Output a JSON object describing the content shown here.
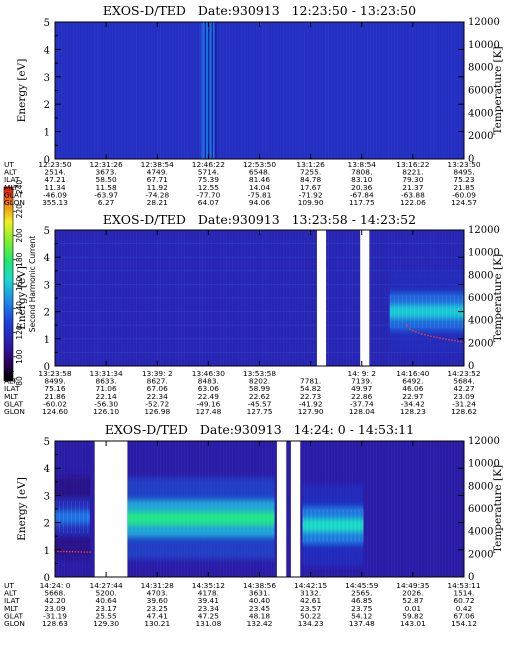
{
  "panels": [
    {
      "title": "EXOS-D/TED   Date:930913   12:23:50 - 13:23:50",
      "row_labels": [
        "UT",
        "ALT",
        "ILAT",
        "MLT",
        "GLAT",
        "GLON"
      ],
      "columns": [
        [
          "12:23:50",
          "2514.",
          "47.21",
          "11.34",
          "-46.09",
          "355.13"
        ],
        [
          "12:31:26",
          "3673.",
          "58.50",
          "11.58",
          "-63.97",
          "6.27"
        ],
        [
          "12:38:54",
          "4749.",
          "67.71",
          "11.92",
          "-74.28",
          "28.21"
        ],
        [
          "12:46:22",
          "5714.",
          "75.39",
          "12.55",
          "-77.70",
          "64.07"
        ],
        [
          "12:53:50",
          "6548.",
          "81.46",
          "14.04",
          "-75.81",
          "94.06"
        ],
        [
          "13:1:26",
          "7255.",
          "84.78",
          "17.67",
          "-71.92",
          "109.90"
        ],
        [
          "13:8:54",
          "7808.",
          "83.10",
          "20.36",
          "-67.84",
          "117.75"
        ],
        [
          "13:16:22",
          "8221.",
          "79.30",
          "21.37",
          "-63.88",
          "122.06"
        ],
        [
          "13:23:50",
          "8495.",
          "75.23",
          "21.85",
          "-60.09",
          "124.57"
        ]
      ]
    },
    {
      "title": "EXOS-D/TED   Date:930913   13:23:58 - 14:23:52",
      "row_labels": [
        "UT",
        "ALT",
        "ILAT",
        "MLT",
        "GLAT",
        "GLON"
      ],
      "columns": [
        [
          "13:23:58",
          "8499.",
          "75.16",
          "21.86",
          "-60.02",
          "124.60"
        ],
        [
          "13:31:34",
          "8633.",
          "71.06",
          "22.14",
          "-56.30",
          "126.10"
        ],
        [
          "13:39: 2",
          "8627.",
          "67.06",
          "22.34",
          "-52.72",
          "126.98"
        ],
        [
          "13:46:30",
          "8483.",
          "63.06",
          "22.49",
          "-49.16",
          "127.48"
        ],
        [
          "13:53:58",
          "8202.",
          "58.99",
          "22.62",
          "-45.57",
          "127.75"
        ],
        [
          "",
          "7781.",
          "54.82",
          "22.73",
          "-41.92",
          "127.90"
        ],
        [
          "14: 9: 2",
          "7139.",
          "49.97",
          "22.86",
          "-37.74",
          "128.04"
        ],
        [
          "14:16:40",
          "6492.",
          "46.06",
          "22.97",
          "-34.42",
          "128.23"
        ],
        [
          "14:23:52",
          "5684.",
          "42.27",
          "23.09",
          "-31.24",
          "128.62"
        ]
      ]
    },
    {
      "title": "EXOS-D/TED   Date:930913   14:24: 0 - 14:53:11",
      "row_labels": [
        "UT",
        "ALT",
        "ILAT",
        "MLT",
        "GLAT",
        "GLON"
      ],
      "columns": [
        [
          "14:24: 0",
          "5668.",
          "42.20",
          "23.09",
          "-31.19",
          "128.63"
        ],
        [
          "14:27:44",
          "5200.",
          "40.64",
          "23.17",
          "25.55",
          "129.30"
        ],
        [
          "14:31:28",
          "4703.",
          "39.60",
          "23.25",
          "47.41",
          "130.21"
        ],
        [
          "14:35:12",
          "4178.",
          "39.41",
          "23.34",
          "47.25",
          "131.08"
        ],
        [
          "14:38:56",
          "3631.",
          "40.40",
          "23.45",
          "48.18",
          "132.42"
        ],
        [
          "14:42:15",
          "3132.",
          "42.61",
          "23.57",
          "50.22",
          "134.23"
        ],
        [
          "14:45:59",
          "2565.",
          "46.85",
          "23.75",
          "54.12",
          "137.48"
        ],
        [
          "14:49:35",
          "2026.",
          "52.87",
          "0.01",
          "59.82",
          "143.01"
        ],
        [
          "14:53:11",
          "1514.",
          "60.72",
          "0.42",
          "67.06",
          "154.12"
        ]
      ]
    }
  ],
  "axes": {
    "energy_label": "Energy [eV]",
    "temperature_label": "Temperature [K]",
    "energy_ticks": [
      "0",
      "1",
      "2",
      "3",
      "4",
      "5"
    ],
    "temperature_ticks": [
      "0",
      "2000",
      "4000",
      "6000",
      "8000",
      "10000",
      "12000"
    ]
  },
  "colorbar": {
    "label": "Second Harmonic Current",
    "ticks": [
      "80",
      "100",
      "120",
      "140",
      "160",
      "180",
      "200",
      "220",
      "240"
    ]
  },
  "chart_data": [
    {
      "type": "heatmap",
      "title": "EXOS-D/TED   Date:930913   12:23:50 - 13:23:50",
      "ylabel": "Energy [eV]",
      "y2label": "Temperature [K]",
      "ylim": [
        0,
        5
      ],
      "y2lim": [
        0,
        12000
      ],
      "x": [
        "12:23:50",
        "12:31:26",
        "12:38:54",
        "12:46:22",
        "12:53:50",
        "13:1:26",
        "13:8:54",
        "13:16:22",
        "13:23:50"
      ],
      "features": [
        {
          "type": "background",
          "level": 120
        },
        {
          "type": "vertical_band",
          "from": "12:45:30",
          "to": "12:47:10",
          "level": 140
        }
      ]
    },
    {
      "type": "heatmap",
      "title": "EXOS-D/TED   Date:930913   13:23:58 - 14:23:52",
      "ylabel": "Energy [eV]",
      "y2label": "Temperature [K]",
      "ylim": [
        0,
        5
      ],
      "y2lim": [
        0,
        12000
      ],
      "x": [
        "13:23:58",
        "13:31:34",
        "13:39: 2",
        "13:46:30",
        "13:53:58",
        "",
        "14: 9: 2",
        "14:16:40",
        "14:23:52"
      ],
      "features": [
        {
          "type": "background",
          "level": 115
        },
        {
          "type": "data_gap",
          "from": "14:02:20",
          "to": "14:03:40"
        },
        {
          "type": "data_gap",
          "from": "14:08:40",
          "to": "14:10:00"
        },
        {
          "type": "band",
          "from": "14:13:00",
          "to": "14:23:52",
          "energy": 2.0,
          "level": 160
        },
        {
          "type": "temperature_trace",
          "from": "14:15:30",
          "to": "14:23:52",
          "temperature_start": 3600,
          "temperature_end": 2100
        }
      ]
    },
    {
      "type": "heatmap",
      "title": "EXOS-D/TED   Date:930913   14:24: 0 - 14:53:11",
      "ylabel": "Energy [eV]",
      "y2label": "Temperature [K]",
      "ylim": [
        0,
        5
      ],
      "y2lim": [
        0,
        12000
      ],
      "x": [
        "14:24: 0",
        "14:27:44",
        "14:31:28",
        "14:35:12",
        "14:38:56",
        "14:42:15",
        "14:45:59",
        "14:49:35",
        "14:53:11"
      ],
      "features": [
        {
          "type": "background",
          "level": 110
        },
        {
          "type": "band",
          "from": "14:24:00",
          "to": "14:26:30",
          "energy": 2.2,
          "level": 140
        },
        {
          "type": "data_gap",
          "from": "14:26:50",
          "to": "14:29:10"
        },
        {
          "type": "band",
          "from": "14:29:10",
          "to": "14:39:40",
          "energy": 2.15,
          "level": 175
        },
        {
          "type": "data_gap",
          "from": "14:39:50",
          "to": "14:40:30"
        },
        {
          "type": "data_gap",
          "from": "14:40:50",
          "to": "14:41:30"
        },
        {
          "type": "band",
          "from": "14:41:40",
          "to": "14:46:00",
          "energy": 1.9,
          "level": 165
        },
        {
          "type": "temperature_trace",
          "from": "14:24:00",
          "to": "14:26:30",
          "temperature_start": 2300,
          "temperature_end": 2200
        }
      ]
    }
  ]
}
